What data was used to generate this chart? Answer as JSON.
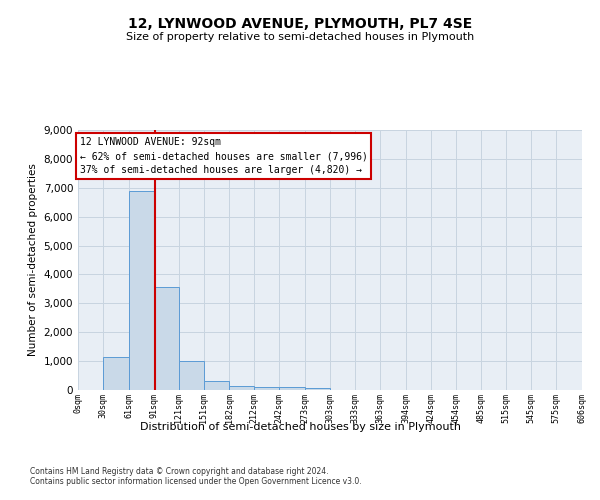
{
  "title": "12, LYNWOOD AVENUE, PLYMOUTH, PL7 4SE",
  "subtitle": "Size of property relative to semi-detached houses in Plymouth",
  "xlabel": "Distribution of semi-detached houses by size in Plymouth",
  "ylabel": "Number of semi-detached properties",
  "footer_line1": "Contains HM Land Registry data © Crown copyright and database right 2024.",
  "footer_line2": "Contains public sector information licensed under the Open Government Licence v3.0.",
  "property_size": 92,
  "annotation_title": "12 LYNWOOD AVENUE: 92sqm",
  "annotation_line1": "← 62% of semi-detached houses are smaller (7,996)",
  "annotation_line2": "37% of semi-detached houses are larger (4,820) →",
  "bar_edges": [
    0,
    30,
    61,
    91,
    121,
    151,
    182,
    212,
    242,
    273,
    303,
    333,
    363,
    394,
    424,
    454,
    485,
    515,
    545,
    575,
    606
  ],
  "bar_heights": [
    0,
    1130,
    6880,
    3570,
    1000,
    320,
    140,
    110,
    100,
    75,
    0,
    0,
    0,
    0,
    0,
    0,
    0,
    0,
    0,
    0
  ],
  "bar_color": "#c9d9e8",
  "bar_edge_color": "#5b9bd5",
  "grid_color": "#c8d4e0",
  "background_color": "#e8eef5",
  "red_line_color": "#cc0000",
  "annotation_box_color": "#cc0000",
  "ylim": [
    0,
    9000
  ],
  "yticks": [
    0,
    1000,
    2000,
    3000,
    4000,
    5000,
    6000,
    7000,
    8000,
    9000
  ],
  "xtick_labels": [
    "0sqm",
    "30sqm",
    "61sqm",
    "91sqm",
    "121sqm",
    "151sqm",
    "182sqm",
    "212sqm",
    "242sqm",
    "273sqm",
    "303sqm",
    "333sqm",
    "363sqm",
    "394sqm",
    "424sqm",
    "454sqm",
    "485sqm",
    "515sqm",
    "545sqm",
    "575sqm",
    "606sqm"
  ]
}
